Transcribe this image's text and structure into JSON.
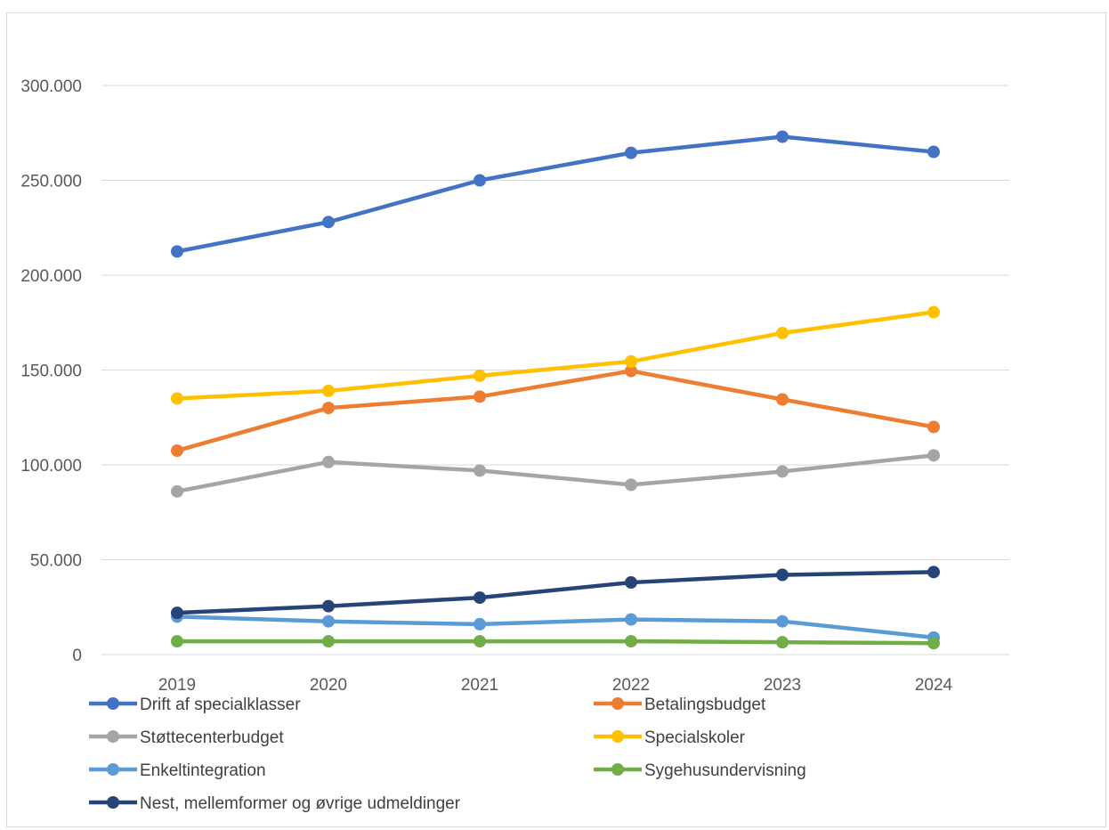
{
  "chart_data": {
    "type": "line",
    "title": "",
    "xlabel": "",
    "ylabel": "",
    "x": [
      "2019",
      "2020",
      "2021",
      "2022",
      "2023",
      "2024"
    ],
    "ylim": [
      0,
      300000
    ],
    "y_ticks": [
      0,
      50000,
      100000,
      150000,
      200000,
      250000,
      300000
    ],
    "y_tick_labels": [
      "0",
      "50.000",
      "100.000",
      "150.000",
      "200.000",
      "250.000",
      "300.000"
    ],
    "grid": true,
    "legend_position": "bottom",
    "series": [
      {
        "name": "Drift af specialklasser",
        "color": "#4472C4",
        "values": [
          212500,
          228000,
          250000,
          264500,
          273000,
          265000
        ]
      },
      {
        "name": "Betalingsbudget",
        "color": "#ED7D31",
        "values": [
          107500,
          130000,
          136000,
          149500,
          134500,
          120000
        ]
      },
      {
        "name": "Støttecenterbudget",
        "color": "#A5A5A5",
        "values": [
          86000,
          101500,
          97000,
          89500,
          96500,
          105000
        ]
      },
      {
        "name": "Specialskoler",
        "color": "#FFC000",
        "values": [
          135000,
          139000,
          147000,
          154500,
          169500,
          180500
        ]
      },
      {
        "name": "Enkeltintegration",
        "color": "#5B9BD5",
        "values": [
          20000,
          17500,
          16000,
          18500,
          17500,
          9000
        ]
      },
      {
        "name": "Sygehusundervisning",
        "color": "#70AD47",
        "values": [
          7000,
          7000,
          7000,
          7000,
          6500,
          6000
        ]
      },
      {
        "name": "Nest, mellemformer og øvrige udmeldinger",
        "color": "#264478",
        "values": [
          22000,
          25500,
          30000,
          38000,
          42000,
          43500
        ]
      }
    ]
  }
}
